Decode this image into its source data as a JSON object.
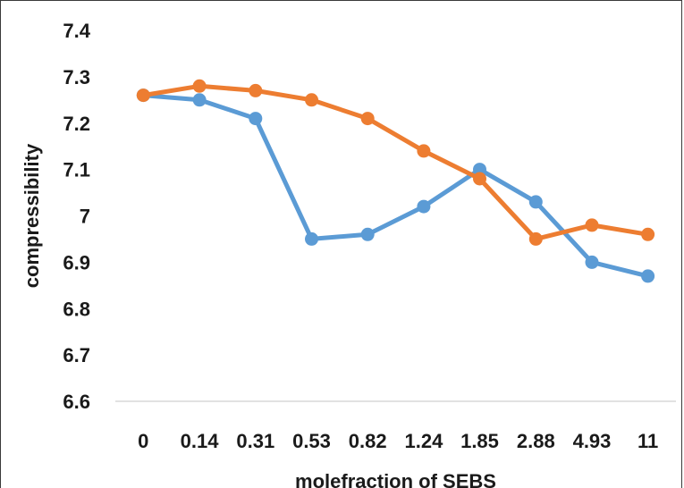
{
  "chart_data": {
    "type": "line",
    "title": "",
    "xlabel": "molefraction of SEBS",
    "ylabel": "compressibility",
    "categories": [
      "0",
      "0.14",
      "0.31",
      "0.53",
      "0.82",
      "1.24",
      "1.85",
      "2.88",
      "4.93",
      "11"
    ],
    "y_ticks": [
      "7.4",
      "7.3",
      "7.2",
      "7.1",
      "7",
      "6.9",
      "6.8",
      "6.7",
      "6.6"
    ],
    "ylim": [
      6.6,
      7.4
    ],
    "grid": false,
    "legend": "none",
    "series": [
      {
        "color": "#5b9bd5",
        "values": [
          7.26,
          7.25,
          7.21,
          6.95,
          6.96,
          7.02,
          7.1,
          7.03,
          6.9,
          6.87
        ]
      },
      {
        "color": "#ed7d31",
        "values": [
          7.26,
          7.28,
          7.27,
          7.25,
          7.21,
          7.14,
          7.08,
          6.95,
          6.98,
          6.96
        ]
      }
    ]
  }
}
